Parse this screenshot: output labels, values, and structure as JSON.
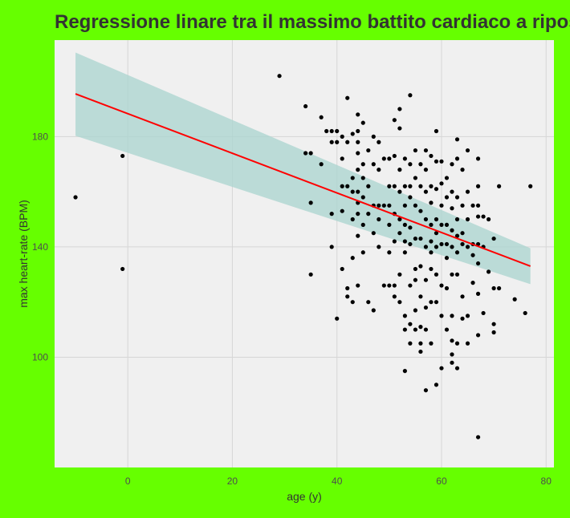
{
  "chart_data": {
    "type": "scatter",
    "title": "Regressione linare tra il massimo battito cardiaco a riposo",
    "xlabel": "age (y)",
    "ylabel": "max heart-rate (BPM)",
    "xlim": [
      -14,
      81.5
    ],
    "ylim": [
      60,
      215
    ],
    "x_ticks": [
      0,
      20,
      40,
      60,
      80
    ],
    "y_ticks": [
      100,
      140,
      180
    ],
    "grid": true,
    "colors": {
      "page_background": "#66ff00",
      "panel_background": "#f0f0f0",
      "grid": "#d6d6d6",
      "points": "#000000",
      "regression_line": "#ff0000",
      "confidence_band": "#a9d4cf"
    },
    "regression": {
      "x": [
        -10,
        77
      ],
      "y": [
        195.5,
        133.0
      ],
      "ci_upper": [
        210.5,
        139.5
      ],
      "ci_lower": [
        180.3,
        126.5
      ]
    },
    "points": [
      [
        -10,
        158
      ],
      [
        -1,
        173
      ],
      [
        -1,
        132
      ],
      [
        29,
        202
      ],
      [
        34,
        191
      ],
      [
        34,
        174
      ],
      [
        35,
        174
      ],
      [
        35,
        156
      ],
      [
        35,
        130
      ],
      [
        37,
        187
      ],
      [
        37,
        170
      ],
      [
        38,
        182
      ],
      [
        39,
        182
      ],
      [
        39,
        178
      ],
      [
        39,
        152
      ],
      [
        39,
        140
      ],
      [
        40,
        182
      ],
      [
        40,
        178
      ],
      [
        40,
        114
      ],
      [
        41,
        172
      ],
      [
        41,
        162
      ],
      [
        41,
        153
      ],
      [
        41,
        132
      ],
      [
        41,
        180
      ],
      [
        42,
        194
      ],
      [
        42,
        178
      ],
      [
        42,
        162
      ],
      [
        42,
        125
      ],
      [
        42,
        122
      ],
      [
        43,
        181
      ],
      [
        43,
        165
      ],
      [
        43,
        160
      ],
      [
        43,
        150
      ],
      [
        43,
        136
      ],
      [
        43,
        120
      ],
      [
        44,
        188
      ],
      [
        44,
        182
      ],
      [
        44,
        178
      ],
      [
        44,
        174
      ],
      [
        44,
        168
      ],
      [
        44,
        160
      ],
      [
        44,
        156
      ],
      [
        44,
        152
      ],
      [
        44,
        144
      ],
      [
        44,
        126
      ],
      [
        45,
        185
      ],
      [
        45,
        170
      ],
      [
        45,
        165
      ],
      [
        45,
        158
      ],
      [
        45,
        148
      ],
      [
        45,
        138
      ],
      [
        46,
        175
      ],
      [
        46,
        162
      ],
      [
        46,
        152
      ],
      [
        46,
        120
      ],
      [
        47,
        180
      ],
      [
        47,
        170
      ],
      [
        47,
        155
      ],
      [
        47,
        145
      ],
      [
        47,
        117
      ],
      [
        48,
        178
      ],
      [
        48,
        168
      ],
      [
        48,
        155
      ],
      [
        48,
        150
      ],
      [
        48,
        140
      ],
      [
        49,
        172
      ],
      [
        49,
        155
      ],
      [
        49,
        126
      ],
      [
        50,
        172
      ],
      [
        50,
        162
      ],
      [
        50,
        155
      ],
      [
        50,
        148
      ],
      [
        50,
        138
      ],
      [
        50,
        126
      ],
      [
        51,
        186
      ],
      [
        51,
        173
      ],
      [
        51,
        162
      ],
      [
        51,
        152
      ],
      [
        51,
        142
      ],
      [
        51,
        126
      ],
      [
        51,
        122
      ],
      [
        52,
        190
      ],
      [
        52,
        183
      ],
      [
        52,
        168
      ],
      [
        52,
        160
      ],
      [
        52,
        150
      ],
      [
        52,
        145
      ],
      [
        52,
        130
      ],
      [
        52,
        120
      ],
      [
        53,
        172
      ],
      [
        53,
        162
      ],
      [
        53,
        155
      ],
      [
        53,
        148
      ],
      [
        53,
        142
      ],
      [
        53,
        138
      ],
      [
        53,
        115
      ],
      [
        53,
        110
      ],
      [
        53,
        95
      ],
      [
        54,
        195
      ],
      [
        54,
        170
      ],
      [
        54,
        162
      ],
      [
        54,
        158
      ],
      [
        54,
        147
      ],
      [
        54,
        141
      ],
      [
        54,
        126
      ],
      [
        54,
        112
      ],
      [
        54,
        105
      ],
      [
        55,
        175
      ],
      [
        55,
        165
      ],
      [
        55,
        155
      ],
      [
        55,
        143
      ],
      [
        55,
        132
      ],
      [
        55,
        128
      ],
      [
        55,
        117
      ],
      [
        55,
        110
      ],
      [
        56,
        170
      ],
      [
        56,
        162
      ],
      [
        56,
        153
      ],
      [
        56,
        143
      ],
      [
        56,
        133
      ],
      [
        56,
        122
      ],
      [
        56,
        111
      ],
      [
        56,
        105
      ],
      [
        56,
        102
      ],
      [
        57,
        175
      ],
      [
        57,
        168
      ],
      [
        57,
        160
      ],
      [
        57,
        150
      ],
      [
        57,
        140
      ],
      [
        57,
        128
      ],
      [
        57,
        118
      ],
      [
        57,
        110
      ],
      [
        57,
        88
      ],
      [
        58,
        173
      ],
      [
        58,
        162
      ],
      [
        58,
        156
      ],
      [
        58,
        148
      ],
      [
        58,
        142
      ],
      [
        58,
        138
      ],
      [
        58,
        132
      ],
      [
        58,
        120
      ],
      [
        58,
        105
      ],
      [
        59,
        182
      ],
      [
        59,
        171
      ],
      [
        59,
        161
      ],
      [
        59,
        150
      ],
      [
        59,
        145
      ],
      [
        59,
        140
      ],
      [
        59,
        130
      ],
      [
        59,
        120
      ],
      [
        59,
        90
      ],
      [
        60,
        171
      ],
      [
        60,
        163
      ],
      [
        60,
        155
      ],
      [
        60,
        148
      ],
      [
        60,
        141
      ],
      [
        60,
        126
      ],
      [
        60,
        115
      ],
      [
        60,
        96
      ],
      [
        61,
        165
      ],
      [
        61,
        158
      ],
      [
        61,
        148
      ],
      [
        61,
        141
      ],
      [
        61,
        136
      ],
      [
        61,
        125
      ],
      [
        61,
        110
      ],
      [
        62,
        170
      ],
      [
        62,
        160
      ],
      [
        62,
        154
      ],
      [
        62,
        146
      ],
      [
        62,
        140
      ],
      [
        62,
        130
      ],
      [
        62,
        115
      ],
      [
        62,
        106
      ],
      [
        62,
        101
      ],
      [
        62,
        98
      ],
      [
        63,
        179
      ],
      [
        63,
        172
      ],
      [
        63,
        158
      ],
      [
        63,
        150
      ],
      [
        63,
        144
      ],
      [
        63,
        138
      ],
      [
        63,
        130
      ],
      [
        63,
        105
      ],
      [
        63,
        96
      ],
      [
        64,
        168
      ],
      [
        64,
        155
      ],
      [
        64,
        145
      ],
      [
        64,
        141
      ],
      [
        64,
        122
      ],
      [
        64,
        114
      ],
      [
        65,
        175
      ],
      [
        65,
        160
      ],
      [
        65,
        150
      ],
      [
        65,
        140
      ],
      [
        65,
        115
      ],
      [
        65,
        105
      ],
      [
        66,
        155
      ],
      [
        66,
        141
      ],
      [
        66,
        137
      ],
      [
        66,
        127
      ],
      [
        67,
        172
      ],
      [
        67,
        162
      ],
      [
        67,
        155
      ],
      [
        67,
        151
      ],
      [
        67,
        141
      ],
      [
        67,
        134
      ],
      [
        67,
        123
      ],
      [
        67,
        108
      ],
      [
        67,
        71
      ],
      [
        68,
        151
      ],
      [
        68,
        140
      ],
      [
        68,
        116
      ],
      [
        69,
        150
      ],
      [
        69,
        131
      ],
      [
        70,
        143
      ],
      [
        70,
        125
      ],
      [
        70,
        112
      ],
      [
        70,
        109
      ],
      [
        71,
        162
      ],
      [
        71,
        125
      ],
      [
        74,
        121
      ],
      [
        76,
        116
      ],
      [
        77,
        162
      ]
    ]
  }
}
